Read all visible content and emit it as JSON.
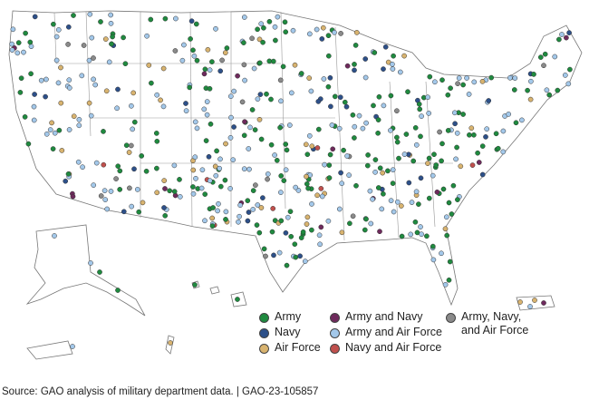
{
  "legend": [
    {
      "label": "Army",
      "color": "#1f8a3f"
    },
    {
      "label": "Navy",
      "color": "#2d5089"
    },
    {
      "label": "Air Force",
      "color": "#d8b36f"
    },
    {
      "label": "Army and Navy",
      "color": "#6e2a5c"
    },
    {
      "label": "Army and Air Force",
      "color": "#a3c8ea"
    },
    {
      "label": "Navy and Air Force",
      "color": "#c0504d"
    },
    {
      "label": "Army, Navy, and Air Force",
      "color": "#8a8a8a"
    }
  ],
  "source": "Source: GAO analysis of military department data.  |  GAO-23-105857"
}
